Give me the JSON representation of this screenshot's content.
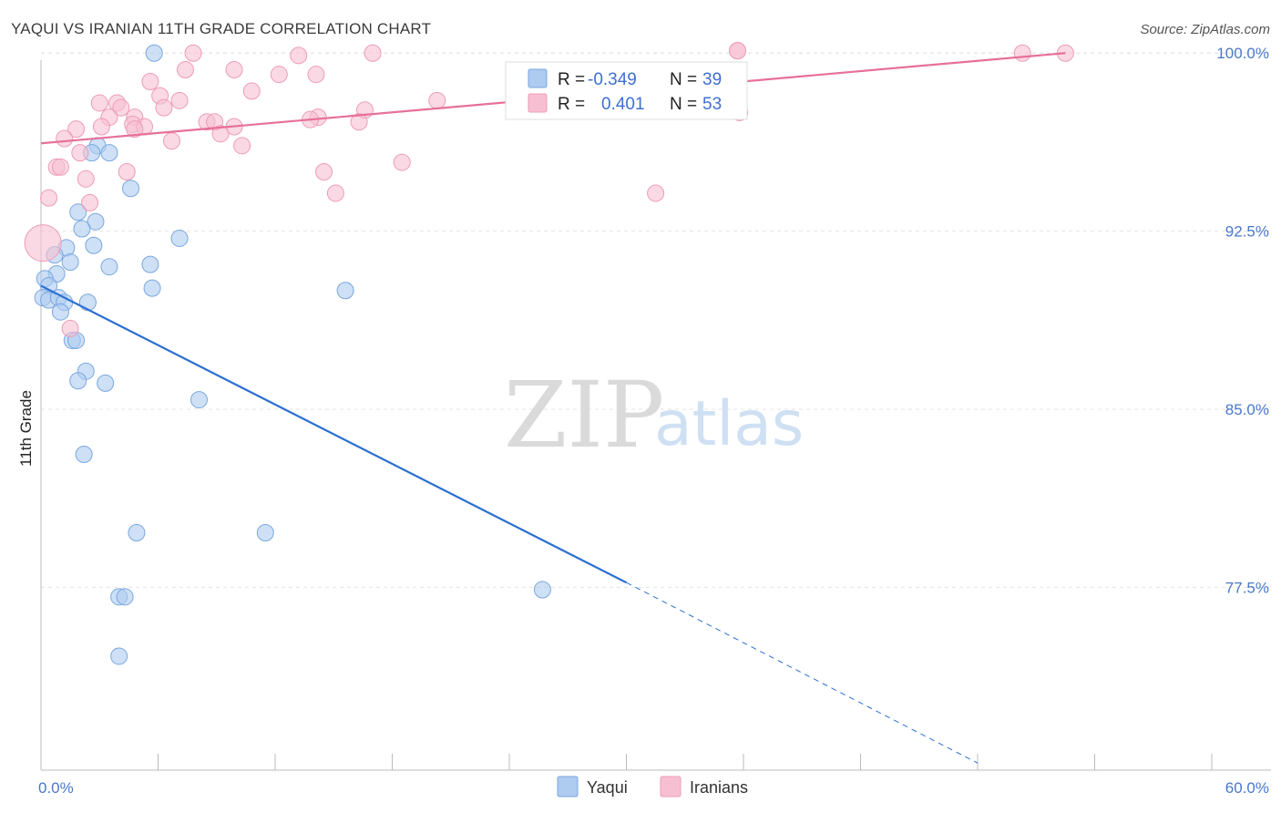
{
  "header": {
    "title": "YAQUI VS IRANIAN 11TH GRADE CORRELATION CHART",
    "source": "Source: ZipAtlas.com"
  },
  "legend": {
    "r_label": "R =",
    "n_label": "N =",
    "series": [
      {
        "name": "Yaqui",
        "r": "-0.349",
        "n": "39",
        "color": "#aecbf0",
        "stroke": "#7aa7e0"
      },
      {
        "name": "Iranians",
        "r": "0.401",
        "n": "53",
        "color": "#f7c0d2",
        "stroke": "#ee9bb8"
      }
    ]
  },
  "watermark": {
    "zip": "ZIP",
    "atlas": "atlas"
  },
  "chart_data": {
    "type": "scatter",
    "title": "YAQUI VS IRANIAN 11TH GRADE CORRELATION CHART",
    "xlabel": "",
    "ylabel": "11th Grade",
    "xlim": [
      0,
      60
    ],
    "ylim": [
      69.8,
      100.7
    ],
    "x_tick_labels": [
      {
        "value": 0,
        "label": "0.0%"
      },
      {
        "value": 60,
        "label": "60.0%"
      }
    ],
    "y_tick_labels": [
      {
        "value": 100,
        "label": "100.0%"
      },
      {
        "value": 92.5,
        "label": "92.5%"
      },
      {
        "value": 85,
        "label": "85.0%"
      },
      {
        "value": 77.5,
        "label": "77.5%"
      }
    ],
    "grid": true,
    "series": [
      {
        "name": "Yaqui",
        "color": "#aecbf0",
        "line_color": "#2c6fd1",
        "trend": {
          "x0": 0,
          "y0": 90.2,
          "x1": 30,
          "y1": 77.7,
          "dashed_to_x": 48,
          "dashed_to_y": 70.1
        },
        "points": [
          [
            5.8,
            100.0
          ],
          [
            2.9,
            96.1
          ],
          [
            2.6,
            95.8
          ],
          [
            3.5,
            95.8
          ],
          [
            4.6,
            94.3
          ],
          [
            1.9,
            93.3
          ],
          [
            2.8,
            92.9
          ],
          [
            2.1,
            92.6
          ],
          [
            7.1,
            92.2
          ],
          [
            1.3,
            91.8
          ],
          [
            2.7,
            91.9
          ],
          [
            0.7,
            91.5
          ],
          [
            1.5,
            91.2
          ],
          [
            5.6,
            91.1
          ],
          [
            3.5,
            91.0
          ],
          [
            0.8,
            90.7
          ],
          [
            0.2,
            90.5
          ],
          [
            0.4,
            90.2
          ],
          [
            5.7,
            90.1
          ],
          [
            15.6,
            90.0
          ],
          [
            0.1,
            89.7
          ],
          [
            0.4,
            89.6
          ],
          [
            0.9,
            89.7
          ],
          [
            1.2,
            89.5
          ],
          [
            2.4,
            89.5
          ],
          [
            1.0,
            89.1
          ],
          [
            1.6,
            87.9
          ],
          [
            1.8,
            87.9
          ],
          [
            2.3,
            86.6
          ],
          [
            1.9,
            86.2
          ],
          [
            3.3,
            86.1
          ],
          [
            8.1,
            85.4
          ],
          [
            2.2,
            83.1
          ],
          [
            4.9,
            79.8
          ],
          [
            11.5,
            79.8
          ],
          [
            25.7,
            77.4
          ],
          [
            4.0,
            77.1
          ],
          [
            4.3,
            77.1
          ],
          [
            4.0,
            74.6
          ]
        ]
      },
      {
        "name": "Iranians",
        "color": "#f7c0d2",
        "line_color": "#e6709a",
        "trend": {
          "x0": 0,
          "y0": 96.2,
          "x1": 52.5,
          "y1": 100.0
        },
        "points": [
          [
            7.8,
            100.0
          ],
          [
            13.2,
            99.9
          ],
          [
            17.0,
            100.0
          ],
          [
            35.7,
            100.1
          ],
          [
            50.3,
            100.0
          ],
          [
            52.5,
            100.0
          ],
          [
            7.4,
            99.3
          ],
          [
            9.9,
            99.3
          ],
          [
            12.2,
            99.1
          ],
          [
            14.1,
            99.1
          ],
          [
            5.6,
            98.8
          ],
          [
            10.8,
            98.4
          ],
          [
            6.1,
            98.2
          ],
          [
            3.0,
            97.9
          ],
          [
            3.9,
            97.9
          ],
          [
            7.1,
            98.0
          ],
          [
            20.3,
            98.0
          ],
          [
            25.6,
            98.0
          ],
          [
            4.1,
            97.7
          ],
          [
            6.3,
            97.7
          ],
          [
            16.6,
            97.6
          ],
          [
            35.8,
            97.5
          ],
          [
            3.5,
            97.3
          ],
          [
            4.8,
            97.3
          ],
          [
            14.2,
            97.3
          ],
          [
            13.8,
            97.2
          ],
          [
            8.5,
            97.1
          ],
          [
            8.9,
            97.1
          ],
          [
            16.3,
            97.1
          ],
          [
            4.7,
            97.0
          ],
          [
            3.1,
            96.9
          ],
          [
            5.3,
            96.9
          ],
          [
            1.8,
            96.8
          ],
          [
            9.9,
            96.9
          ],
          [
            4.8,
            96.8
          ],
          [
            9.2,
            96.6
          ],
          [
            1.2,
            96.4
          ],
          [
            6.7,
            96.3
          ],
          [
            10.3,
            96.1
          ],
          [
            2.0,
            95.8
          ],
          [
            18.5,
            95.4
          ],
          [
            0.8,
            95.2
          ],
          [
            1.0,
            95.2
          ],
          [
            4.4,
            95.0
          ],
          [
            14.5,
            95.0
          ],
          [
            2.3,
            94.7
          ],
          [
            15.1,
            94.1
          ],
          [
            31.5,
            94.1
          ],
          [
            0.4,
            93.9
          ],
          [
            2.5,
            93.7
          ],
          [
            0.1,
            92.0
          ],
          [
            1.5,
            88.4
          ],
          [
            35.7,
            100.1
          ]
        ]
      }
    ]
  }
}
